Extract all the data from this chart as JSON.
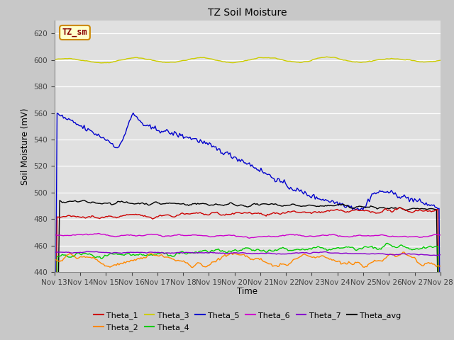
{
  "title": "TZ Soil Moisture",
  "ylabel": "Soil Moisture (mV)",
  "xlabel": "Time",
  "x_tick_labels": [
    "Nov 13",
    "Nov 14",
    "Nov 15",
    "Nov 16",
    "Nov 17",
    "Nov 18",
    "Nov 19",
    "Nov 20",
    "Nov 21",
    "Nov 22",
    "Nov 23",
    "Nov 24",
    "Nov 25",
    "Nov 26",
    "Nov 27",
    "Nov 28"
  ],
  "ylim": [
    440,
    630
  ],
  "yticks": [
    440,
    460,
    480,
    500,
    520,
    540,
    560,
    580,
    600,
    620
  ],
  "colors": {
    "Theta_1": "#cc0000",
    "Theta_2": "#ff8800",
    "Theta_3": "#cccc00",
    "Theta_4": "#00cc00",
    "Theta_5": "#0000cc",
    "Theta_6": "#cc00cc",
    "Theta_7": "#8800cc",
    "Theta_avg": "#000000"
  },
  "fig_bg": "#c8c8c8",
  "plot_bg": "#e0e0e0",
  "label_box_color": "#ffffcc",
  "label_box_edge": "#cc8800",
  "label_text_color": "#880000",
  "label_text": "TZ_sm",
  "n_points": 300
}
